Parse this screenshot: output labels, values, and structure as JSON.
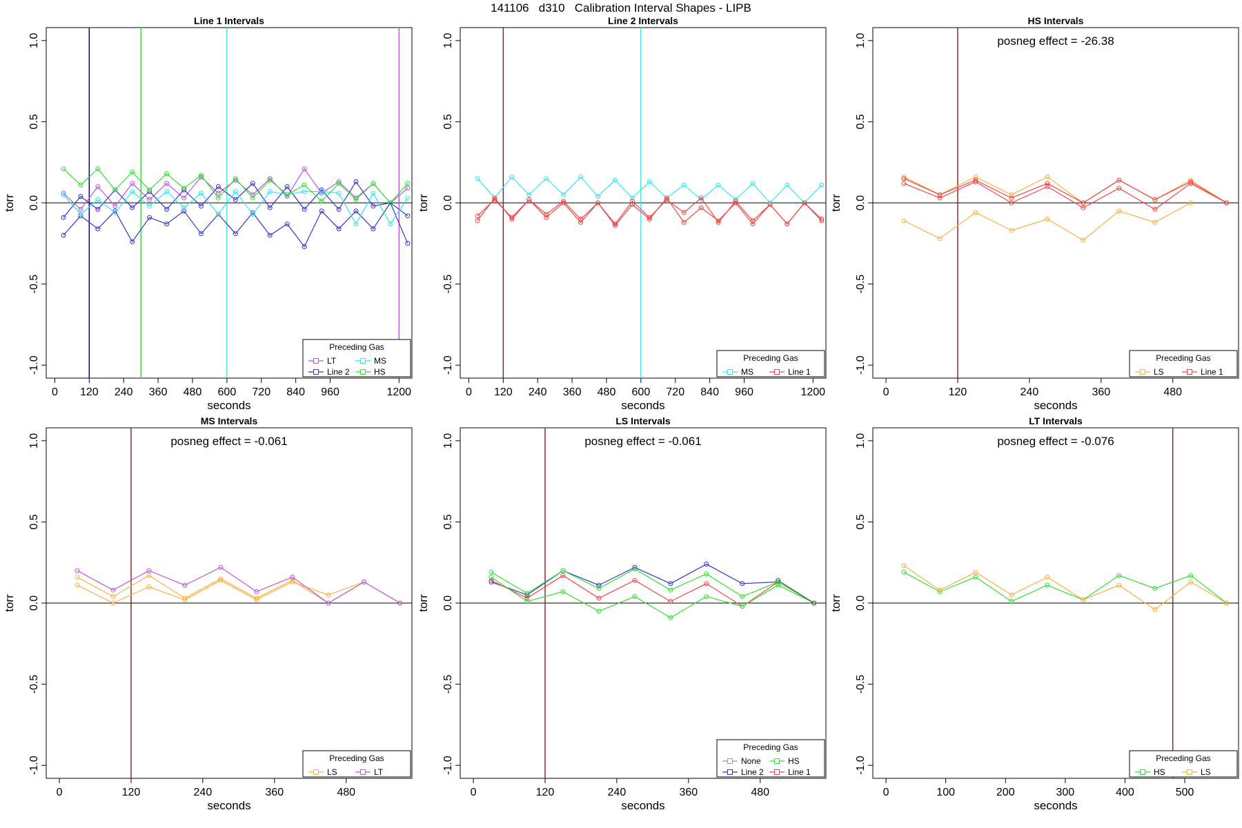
{
  "page_title": "141106   d310   Calibration Interval Shapes - LIPB",
  "chart_data": [
    {
      "type": "line",
      "title": "Line 1 Intervals",
      "xlabel": "seconds",
      "ylabel": "torr",
      "xlim": [
        -30,
        1245
      ],
      "ylim": [
        -1.08,
        1.08
      ],
      "xticks": [
        0,
        120,
        240,
        360,
        480,
        600,
        720,
        840,
        960,
        1200
      ],
      "yticks": [
        -1.0,
        -0.5,
        0.0,
        0.5,
        1.0
      ],
      "ytick_labels": [
        "-1.0",
        "-0.5",
        "0.0",
        "0.5",
        "1.0"
      ],
      "hline": 0,
      "vlines": [
        {
          "x": 120,
          "color": "#8a2be2"
        },
        {
          "x": 120,
          "color": "#00008b"
        },
        {
          "x": 300,
          "color": "#33dd33"
        },
        {
          "x": 600,
          "color": "#33e6e6"
        },
        {
          "x": 1200,
          "color": "#bb55dd"
        }
      ],
      "annotation": "",
      "legend": {
        "title": "Preceding Gas",
        "position": "bottom-right",
        "columns": 2,
        "entries": [
          {
            "name": "LT",
            "color": "#bb55dd"
          },
          {
            "name": "MS",
            "color": "#33e6e6"
          },
          {
            "name": "Line 2",
            "color": "#3333cc"
          },
          {
            "name": "HS",
            "color": "#33dd33"
          }
        ]
      },
      "series": [
        {
          "color": "#bb55dd",
          "x": [
            30,
            90,
            150,
            210,
            270,
            330,
            390,
            450,
            510,
            570,
            630,
            690,
            750,
            810,
            870,
            930,
            990,
            1050,
            1110,
            1170,
            1230
          ],
          "y": [
            0.06,
            -0.04,
            0.1,
            -0.02,
            0.12,
            0.02,
            0.12,
            0.03,
            0.16,
            0.06,
            0.14,
            0.05,
            0.15,
            0.04,
            0.21,
            0.06,
            0.13,
            0.03,
            0.12,
            0.0,
            0.09
          ]
        },
        {
          "color": "#3333cc",
          "x": [
            30,
            90,
            150,
            210,
            270,
            330,
            390,
            450,
            510,
            570,
            630,
            690,
            750,
            810,
            870,
            930,
            990,
            1050,
            1110,
            1170,
            1230
          ],
          "y": [
            -0.2,
            -0.08,
            -0.16,
            -0.05,
            -0.24,
            -0.09,
            -0.13,
            -0.05,
            -0.19,
            -0.07,
            -0.19,
            -0.06,
            -0.2,
            -0.13,
            -0.27,
            -0.05,
            -0.16,
            -0.05,
            -0.16,
            0.0,
            -0.25
          ]
        },
        {
          "color": "#3333cc",
          "x": [
            30,
            90,
            150,
            210,
            270,
            330,
            390,
            450,
            510,
            570,
            630,
            690,
            750,
            810,
            870,
            930,
            990,
            1050,
            1110,
            1170,
            1230
          ],
          "y": [
            -0.09,
            0.04,
            -0.04,
            0.08,
            -0.03,
            0.07,
            -0.04,
            0.08,
            -0.02,
            0.1,
            0.02,
            0.12,
            -0.03,
            0.1,
            -0.04,
            0.08,
            -0.04,
            0.13,
            -0.02,
            0.0,
            -0.08
          ]
        },
        {
          "color": "#33e6e6",
          "x": [
            30,
            90,
            150,
            210,
            270,
            330,
            390,
            450,
            510,
            570,
            630,
            690,
            750,
            810,
            870,
            930,
            990,
            1050,
            1110,
            1170,
            1230
          ],
          "y": [
            0.05,
            -0.07,
            0.02,
            -0.06,
            0.07,
            -0.02,
            0.07,
            -0.03,
            0.06,
            -0.07,
            0.07,
            -0.07,
            0.07,
            0.05,
            0.07,
            0.07,
            0.06,
            -0.13,
            0.06,
            -0.13,
            0.03
          ]
        },
        {
          "color": "#33dd33",
          "x": [
            30,
            90,
            150,
            210,
            270,
            330,
            390,
            450,
            510,
            570,
            630,
            690,
            750,
            810,
            870,
            930,
            990,
            1050,
            1110,
            1170,
            1230
          ],
          "y": [
            0.21,
            0.11,
            0.21,
            0.08,
            0.19,
            0.08,
            0.18,
            0.09,
            0.17,
            0.03,
            0.15,
            0.03,
            0.14,
            0.05,
            0.11,
            0.01,
            0.12,
            0.02,
            0.12,
            0.0,
            0.12
          ]
        }
      ]
    },
    {
      "type": "line",
      "title": "Line 2 Intervals",
      "xlabel": "seconds",
      "ylabel": "torr",
      "xlim": [
        -30,
        1245
      ],
      "ylim": [
        -1.08,
        1.08
      ],
      "xticks": [
        0,
        120,
        240,
        360,
        480,
        600,
        720,
        840,
        960,
        1200
      ],
      "yticks": [
        -1.0,
        -0.5,
        0.0,
        0.5,
        1.0
      ],
      "ytick_labels": [
        "-1.0",
        "-0.5",
        "0.0",
        "0.5",
        "1.0"
      ],
      "hline": 0,
      "vlines": [
        {
          "x": 120,
          "color": "#8b1a1a"
        },
        {
          "x": 600,
          "color": "#33e6e6"
        }
      ],
      "annotation": "",
      "legend": {
        "title": "Preceding Gas",
        "position": "bottom-right",
        "columns": 2,
        "entries": [
          {
            "name": "MS",
            "color": "#33e6e6"
          },
          {
            "name": "Line 1",
            "color": "#ee4444"
          }
        ]
      },
      "series": [
        {
          "color": "#33e6e6",
          "x": [
            30,
            90,
            150,
            210,
            270,
            330,
            390,
            450,
            510,
            570,
            630,
            690,
            750,
            810,
            870,
            930,
            990,
            1050,
            1110,
            1170,
            1230
          ],
          "y": [
            0.15,
            0.03,
            0.16,
            0.05,
            0.15,
            0.05,
            0.16,
            0.04,
            0.14,
            0.03,
            0.13,
            0.03,
            0.11,
            0.02,
            0.11,
            0.02,
            0.12,
            0.0,
            0.11,
            0.0,
            0.11
          ]
        },
        {
          "color": "#ee4444",
          "x": [
            30,
            90,
            150,
            210,
            270,
            330,
            390,
            450,
            510,
            570,
            630,
            690,
            750,
            810,
            870,
            930,
            990,
            1050,
            1110,
            1170,
            1230
          ],
          "y": [
            -0.08,
            0.02,
            -0.09,
            0.02,
            -0.07,
            0.01,
            -0.1,
            0.0,
            -0.13,
            0.01,
            -0.09,
            0.02,
            -0.06,
            0.03,
            -0.12,
            0.01,
            -0.11,
            -0.01,
            -0.13,
            0.0,
            -0.1
          ]
        },
        {
          "color": "#ee4444",
          "x": [
            30,
            90,
            150,
            210,
            270,
            330,
            390,
            450,
            510,
            570,
            630,
            690,
            750,
            810,
            870,
            930,
            990,
            1050,
            1110,
            1170,
            1230
          ],
          "y": [
            -0.11,
            0.03,
            -0.1,
            0.02,
            -0.09,
            0.0,
            -0.12,
            0.0,
            -0.14,
            -0.01,
            -0.1,
            0.03,
            -0.12,
            -0.03,
            -0.11,
            0.0,
            -0.13,
            -0.01,
            -0.13,
            0.0,
            -0.11
          ]
        }
      ]
    },
    {
      "type": "line",
      "title": "HS Intervals",
      "xlabel": "seconds",
      "ylabel": "torr",
      "xlim": [
        -22,
        590
      ],
      "ylim": [
        -1.08,
        1.08
      ],
      "xticks": [
        0,
        120,
        240,
        360,
        480
      ],
      "yticks": [
        -1.0,
        -0.5,
        0.0,
        0.5,
        1.0
      ],
      "ytick_labels": [
        "-1.0",
        "-0.5",
        "0.0",
        "0.5",
        "1.0"
      ],
      "hline": 0,
      "vlines": [
        {
          "x": 120,
          "color": "#8b1a1a"
        }
      ],
      "annotation": "posneg effect = -26.38",
      "legend": {
        "title": "Preceding Gas",
        "position": "bottom-right",
        "columns": 2,
        "entries": [
          {
            "name": "LS",
            "color": "#f5b041"
          },
          {
            "name": "Line 1",
            "color": "#ee4444"
          }
        ]
      },
      "series": [
        {
          "color": "#f5b041",
          "x": [
            30,
            90,
            150,
            210,
            270,
            330,
            390,
            450,
            510
          ],
          "y": [
            -0.11,
            -0.22,
            -0.06,
            -0.17,
            -0.1,
            -0.23,
            -0.05,
            -0.12,
            0.0
          ]
        },
        {
          "color": "#f5b041",
          "x": [
            30,
            90,
            150,
            210,
            270,
            330,
            390,
            450,
            510,
            570
          ],
          "y": [
            0.16,
            0.05,
            0.16,
            0.05,
            0.16,
            0.0,
            0.14,
            0.02,
            0.14,
            0.0
          ]
        },
        {
          "color": "#ee4444",
          "x": [
            30,
            90,
            150,
            210,
            270,
            330,
            390,
            450,
            510,
            570
          ],
          "y": [
            0.12,
            0.03,
            0.13,
            0.0,
            0.1,
            -0.03,
            0.09,
            -0.04,
            0.12,
            0.0
          ]
        },
        {
          "color": "#ee4444",
          "x": [
            30,
            90,
            150,
            210,
            270,
            330,
            390,
            450,
            510,
            570
          ],
          "y": [
            0.15,
            0.05,
            0.14,
            0.03,
            0.12,
            0.0,
            0.14,
            0.02,
            0.13,
            0.0
          ]
        }
      ]
    },
    {
      "type": "line",
      "title": "MS Intervals",
      "xlabel": "seconds",
      "ylabel": "torr",
      "xlim": [
        -22,
        590
      ],
      "ylim": [
        -1.08,
        1.08
      ],
      "xticks": [
        0,
        120,
        240,
        360,
        480
      ],
      "yticks": [
        -1.0,
        -0.5,
        0.0,
        0.5,
        1.0
      ],
      "ytick_labels": [
        "-1.0",
        "-0.5",
        "0.0",
        "0.5",
        "1.0"
      ],
      "hline": 0,
      "vlines": [
        {
          "x": 120,
          "color": "#8b1a1a"
        }
      ],
      "annotation": "posneg effect = -0.061",
      "legend": {
        "title": "Preceding Gas",
        "position": "bottom-right",
        "columns": 2,
        "entries": [
          {
            "name": "LS",
            "color": "#f5b041"
          },
          {
            "name": "LT",
            "color": "#bb55dd"
          }
        ]
      },
      "series": [
        {
          "color": "#f5b041",
          "x": [
            30,
            90,
            150,
            210,
            270,
            330,
            390,
            450,
            510,
            570
          ],
          "y": [
            0.11,
            0.0,
            0.1,
            0.02,
            0.14,
            0.02,
            0.13,
            0.05,
            0.13,
            0.0
          ]
        },
        {
          "color": "#f5b041",
          "x": [
            30,
            90,
            150,
            210,
            270,
            330,
            390,
            450,
            510,
            570
          ],
          "y": [
            0.16,
            0.04,
            0.17,
            0.03,
            0.15,
            0.03,
            0.14,
            0.0,
            0.13,
            0.0
          ]
        },
        {
          "color": "#bb55dd",
          "x": [
            30,
            90,
            150,
            210,
            270,
            330,
            390,
            450,
            510,
            570
          ],
          "y": [
            0.2,
            0.08,
            0.2,
            0.11,
            0.22,
            0.07,
            0.16,
            0.0,
            0.13,
            0.0
          ]
        }
      ]
    },
    {
      "type": "line",
      "title": "LS Intervals",
      "xlabel": "seconds",
      "ylabel": "torr",
      "xlim": [
        -22,
        590
      ],
      "ylim": [
        -1.08,
        1.08
      ],
      "xticks": [
        0,
        120,
        240,
        360,
        480
      ],
      "yticks": [
        -1.0,
        -0.5,
        0.0,
        0.5,
        1.0
      ],
      "ytick_labels": [
        "-1.0",
        "-0.5",
        "0.0",
        "0.5",
        "1.0"
      ],
      "hline": 0,
      "vlines": [
        {
          "x": 120,
          "color": "#8b1a1a"
        }
      ],
      "annotation": "posneg effect = -0.061",
      "legend": {
        "title": "Preceding Gas",
        "position": "bottom-right",
        "columns": 2,
        "entries": [
          {
            "name": "None",
            "color": "#999999"
          },
          {
            "name": "HS",
            "color": "#33dd33"
          },
          {
            "name": "Line 2",
            "color": "#3333cc"
          },
          {
            "name": "Line 1",
            "color": "#ee4444"
          }
        ]
      },
      "series": [
        {
          "color": "#3333cc",
          "x": [
            30,
            90,
            150,
            210,
            270,
            330,
            390,
            450,
            510
          ],
          "y": [
            0.13,
            0.05,
            0.2,
            0.11,
            0.22,
            0.12,
            0.24,
            0.12,
            0.13
          ]
        },
        {
          "color": "#ee4444",
          "x": [
            30,
            90,
            150,
            210,
            270,
            330,
            390,
            450,
            510,
            570
          ],
          "y": [
            0.14,
            0.03,
            0.17,
            0.03,
            0.14,
            0.01,
            0.12,
            -0.02,
            0.13,
            0.0
          ]
        },
        {
          "color": "#33dd33",
          "x": [
            30,
            90,
            150,
            210,
            270,
            330,
            390,
            450,
            510,
            570
          ],
          "y": [
            0.19,
            0.06,
            0.2,
            0.09,
            0.21,
            0.08,
            0.18,
            0.04,
            0.13,
            0.0
          ]
        },
        {
          "color": "#33dd33",
          "x": [
            30,
            90,
            150,
            210,
            270,
            330,
            390,
            450,
            510,
            570
          ],
          "y": [
            0.16,
            0.01,
            0.07,
            -0.05,
            0.04,
            -0.09,
            0.04,
            -0.02,
            0.11,
            0.0
          ]
        },
        {
          "color": "#555555",
          "x": [
            510,
            570
          ],
          "y": [
            0.14,
            0.0
          ]
        }
      ]
    },
    {
      "type": "line",
      "title": "LT Intervals",
      "xlabel": "seconds",
      "ylabel": "torr",
      "xlim": [
        -22,
        590
      ],
      "ylim": [
        -1.08,
        1.08
      ],
      "xticks": [
        0,
        100,
        200,
        300,
        400,
        500
      ],
      "yticks": [
        -1.0,
        -0.5,
        0.0,
        0.5,
        1.0
      ],
      "ytick_labels": [
        "-1.0",
        "-0.5",
        "0.0",
        "0.5",
        "1.0"
      ],
      "hline": 0,
      "vlines": [
        {
          "x": 480,
          "color": "#8b1a1a"
        }
      ],
      "annotation": "posneg effect = -0.076",
      "legend": {
        "title": "Preceding Gas",
        "position": "bottom-right",
        "columns": 2,
        "entries": [
          {
            "name": "HS",
            "color": "#33dd33"
          },
          {
            "name": "LS",
            "color": "#f5b041"
          }
        ]
      },
      "series": [
        {
          "color": "#33dd33",
          "x": [
            30,
            90,
            150,
            210,
            270,
            330,
            390,
            450,
            510,
            570
          ],
          "y": [
            0.19,
            0.07,
            0.16,
            0.01,
            0.11,
            0.02,
            0.17,
            0.09,
            0.17,
            0.0
          ]
        },
        {
          "color": "#f5b041",
          "x": [
            30,
            90,
            150,
            210,
            270,
            330,
            390,
            450,
            510,
            570
          ],
          "y": [
            0.23,
            0.08,
            0.19,
            0.05,
            0.16,
            0.02,
            0.11,
            -0.04,
            0.13,
            0.0
          ]
        }
      ]
    }
  ]
}
